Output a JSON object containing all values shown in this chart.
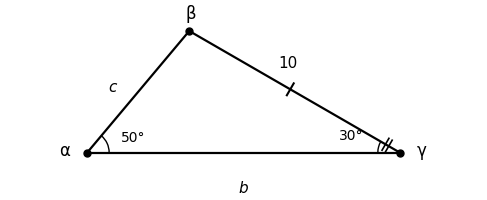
{
  "alpha_deg": 50,
  "gamma_deg": 30,
  "beta_deg": 100,
  "side_a": 10,
  "label_a": "10",
  "label_b": "b",
  "label_c": "c",
  "label_alpha": "α",
  "label_beta": "β",
  "label_gamma": "γ",
  "angle_alpha_label": "50°",
  "angle_gamma_label": "30°",
  "vertex_color": "black",
  "line_color": "black",
  "bg_color": "white",
  "fig_width": 4.87,
  "fig_height": 2.0,
  "dpi": 100
}
